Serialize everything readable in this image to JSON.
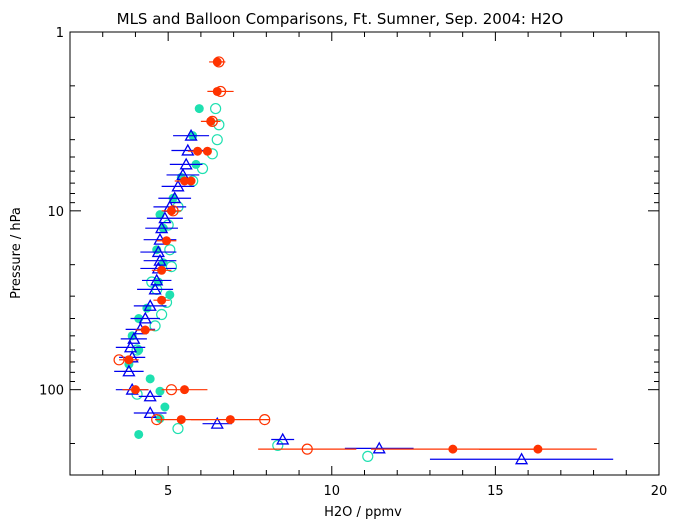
{
  "chart_data": {
    "type": "scatter",
    "title": "MLS and Balloon Comparisons, Ft. Sumner, Sep. 2004: H2O",
    "xlabel": "H2O / ppmv",
    "ylabel": "Pressure / hPa",
    "xlim": [
      2,
      20
    ],
    "ylim": [
      1,
      300
    ],
    "yscale": "log",
    "xticks": [
      "5",
      "10",
      "15",
      "20"
    ],
    "yticks": [
      "1",
      "10",
      "100"
    ],
    "series": [
      {
        "marker": "filled-circle",
        "color": "#ff3300",
        "points": [
          {
            "x": 6.5,
            "y": 1.47,
            "err": 0.25
          },
          {
            "x": 6.5,
            "y": 2.15,
            "err": 0.3
          },
          {
            "x": 6.3,
            "y": 3.16,
            "err": 0.3
          },
          {
            "x": 5.9,
            "y": 4.64,
            "err": 0.3
          },
          {
            "x": 6.2,
            "y": 4.64
          },
          {
            "x": 5.5,
            "y": 6.81,
            "err": 0.3
          },
          {
            "x": 5.7,
            "y": 6.81
          },
          {
            "x": 5.1,
            "y": 10.0,
            "err": 0.3
          },
          {
            "x": 4.95,
            "y": 14.7,
            "err": 0.3
          },
          {
            "x": 4.8,
            "y": 21.5,
            "err": 0.3
          },
          {
            "x": 4.8,
            "y": 31.6,
            "err": 0.25
          },
          {
            "x": 4.3,
            "y": 46.4,
            "err": 0.3
          },
          {
            "x": 3.8,
            "y": 68.1,
            "err": 0.3
          },
          {
            "x": 4.0,
            "y": 100,
            "err": 0.4
          },
          {
            "x": 5.5,
            "y": 100,
            "err": 0.7
          },
          {
            "x": 5.4,
            "y": 147,
            "err": 0.8
          },
          {
            "x": 6.9,
            "y": 147,
            "err": 1.2
          },
          {
            "x": 13.7,
            "y": 215,
            "err": 2.5
          },
          {
            "x": 16.3,
            "y": 215,
            "err": 1.8
          }
        ]
      },
      {
        "marker": "open-circle",
        "color": "#ff3300",
        "points": [
          {
            "x": 6.55,
            "y": 1.47,
            "err": 0.15
          },
          {
            "x": 6.6,
            "y": 2.15,
            "err": 0.4
          },
          {
            "x": 6.35,
            "y": 3.16
          },
          {
            "x": 5.15,
            "y": 10.0
          },
          {
            "x": 3.5,
            "y": 68.1
          },
          {
            "x": 5.1,
            "y": 100
          },
          {
            "x": 4.65,
            "y": 147
          },
          {
            "x": 7.95,
            "y": 147
          },
          {
            "x": 9.25,
            "y": 215,
            "err": 1.5
          }
        ]
      },
      {
        "marker": "filled-circle",
        "color": "#1ee0b0",
        "points": [
          {
            "x": 5.95,
            "y": 2.68
          },
          {
            "x": 5.75,
            "y": 3.8
          },
          {
            "x": 5.85,
            "y": 5.5
          },
          {
            "x": 5.4,
            "y": 6.5
          },
          {
            "x": 5.15,
            "y": 8.5
          },
          {
            "x": 4.75,
            "y": 10.5
          },
          {
            "x": 4.85,
            "y": 12.5
          },
          {
            "x": 4.65,
            "y": 16.5
          },
          {
            "x": 4.85,
            "y": 19.5
          },
          {
            "x": 4.7,
            "y": 25.0
          },
          {
            "x": 5.05,
            "y": 29.5
          },
          {
            "x": 4.35,
            "y": 35.0
          },
          {
            "x": 4.1,
            "y": 40.0
          },
          {
            "x": 3.9,
            "y": 50.0
          },
          {
            "x": 4.1,
            "y": 60.0
          },
          {
            "x": 3.8,
            "y": 72.0
          },
          {
            "x": 4.45,
            "y": 87.0
          },
          {
            "x": 4.75,
            "y": 102
          },
          {
            "x": 4.9,
            "y": 125
          },
          {
            "x": 4.75,
            "y": 145
          },
          {
            "x": 4.1,
            "y": 178
          }
        ]
      },
      {
        "marker": "open-circle",
        "color": "#1ee0b0",
        "points": [
          {
            "x": 6.55,
            "y": 3.3
          },
          {
            "x": 6.45,
            "y": 2.68
          },
          {
            "x": 6.5,
            "y": 4.0
          },
          {
            "x": 6.35,
            "y": 4.8
          },
          {
            "x": 6.05,
            "y": 5.8
          },
          {
            "x": 5.75,
            "y": 6.81
          },
          {
            "x": 5.3,
            "y": 9.5
          },
          {
            "x": 5.0,
            "y": 12.0
          },
          {
            "x": 5.05,
            "y": 16.5
          },
          {
            "x": 5.1,
            "y": 20.5
          },
          {
            "x": 4.5,
            "y": 25.0
          },
          {
            "x": 4.65,
            "y": 27.5
          },
          {
            "x": 4.95,
            "y": 32.5
          },
          {
            "x": 4.8,
            "y": 38.0
          },
          {
            "x": 4.6,
            "y": 44.0
          },
          {
            "x": 4.05,
            "y": 60.0
          },
          {
            "x": 4.05,
            "y": 106
          },
          {
            "x": 5.3,
            "y": 165
          },
          {
            "x": 8.35,
            "y": 205
          },
          {
            "x": 11.1,
            "y": 236
          }
        ]
      },
      {
        "marker": "open-triangle",
        "color": "#0000ee",
        "points": [
          {
            "x": 5.7,
            "y": 3.8,
            "err": 0.55
          },
          {
            "x": 5.6,
            "y": 4.6,
            "err": 0.5
          },
          {
            "x": 5.55,
            "y": 5.5,
            "err": 0.5
          },
          {
            "x": 5.45,
            "y": 6.3,
            "err": 0.5
          },
          {
            "x": 5.3,
            "y": 7.3,
            "err": 0.5
          },
          {
            "x": 5.2,
            "y": 8.5,
            "err": 0.5
          },
          {
            "x": 5.05,
            "y": 9.5,
            "err": 0.5
          },
          {
            "x": 4.9,
            "y": 11.0,
            "err": 0.55
          },
          {
            "x": 4.8,
            "y": 12.5,
            "err": 0.5
          },
          {
            "x": 4.75,
            "y": 14.5,
            "err": 0.5
          },
          {
            "x": 4.7,
            "y": 17.0,
            "err": 0.55
          },
          {
            "x": 4.75,
            "y": 19.0,
            "err": 0.5
          },
          {
            "x": 4.7,
            "y": 21.0,
            "err": 0.55
          },
          {
            "x": 4.65,
            "y": 24.5,
            "err": 0.45
          },
          {
            "x": 4.6,
            "y": 27.5,
            "err": 0.55
          },
          {
            "x": 4.45,
            "y": 34.0,
            "err": 0.5
          },
          {
            "x": 4.3,
            "y": 40.0,
            "err": 0.45
          },
          {
            "x": 4.15,
            "y": 46.0,
            "err": 0.45
          },
          {
            "x": 3.95,
            "y": 52.0,
            "err": 0.4
          },
          {
            "x": 3.85,
            "y": 58.0,
            "err": 0.45
          },
          {
            "x": 3.9,
            "y": 66.0,
            "err": 0.4
          },
          {
            "x": 3.8,
            "y": 79.0,
            "err": 0.45
          },
          {
            "x": 3.9,
            "y": 100,
            "err": 0.5
          },
          {
            "x": 4.45,
            "y": 109,
            "err": 0.35
          },
          {
            "x": 4.45,
            "y": 135,
            "err": 0.5
          },
          {
            "x": 6.5,
            "y": 155,
            "err": 0.45
          },
          {
            "x": 8.5,
            "y": 190,
            "err": 0.35
          },
          {
            "x": 11.45,
            "y": 213,
            "err": 1.05
          },
          {
            "x": 15.8,
            "y": 245,
            "err": 2.8
          }
        ]
      }
    ]
  }
}
